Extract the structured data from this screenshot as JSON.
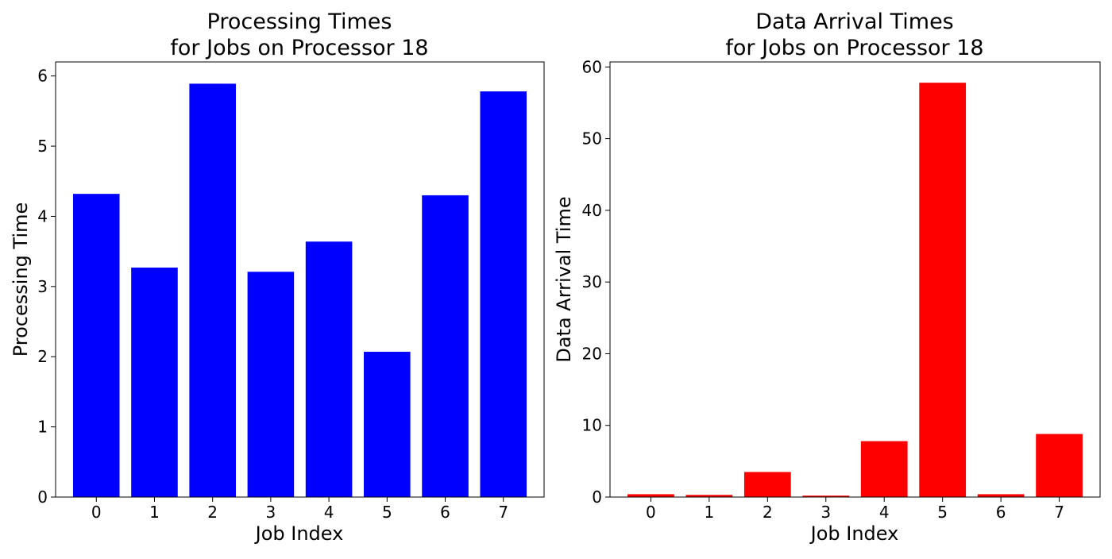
{
  "chart_data": [
    {
      "type": "bar",
      "title": [
        "Processing Times",
        "for Jobs on Processor 18"
      ],
      "xlabel": "Job Index",
      "ylabel": "Processing Time",
      "categories": [
        "0",
        "1",
        "2",
        "3",
        "4",
        "5",
        "6",
        "7"
      ],
      "values": [
        4.32,
        3.27,
        5.89,
        3.21,
        3.64,
        2.07,
        4.3,
        5.78
      ],
      "ylim": [
        0,
        6.2
      ],
      "yticks": [
        0,
        1,
        2,
        3,
        4,
        5,
        6
      ],
      "color": "#0000ff",
      "grid": false,
      "legend": "none"
    },
    {
      "type": "bar",
      "title": [
        "Data Arrival Times",
        "for Jobs on Processor 18"
      ],
      "xlabel": "Job Index",
      "ylabel": "Data Arrival Time",
      "categories": [
        "0",
        "1",
        "2",
        "3",
        "4",
        "5",
        "6",
        "7"
      ],
      "values": [
        0.4,
        0.3,
        3.5,
        0.2,
        7.8,
        57.8,
        0.4,
        8.8
      ],
      "ylim": [
        0,
        60.7
      ],
      "yticks": [
        0,
        10,
        20,
        30,
        40,
        50,
        60
      ],
      "color": "#ff0000",
      "grid": false,
      "legend": "none"
    }
  ]
}
